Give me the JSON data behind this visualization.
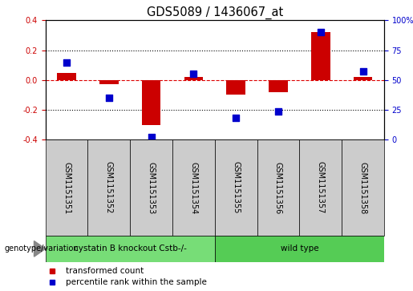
{
  "title": "GDS5089 / 1436067_at",
  "samples": [
    "GSM1151351",
    "GSM1151352",
    "GSM1151353",
    "GSM1151354",
    "GSM1151355",
    "GSM1151356",
    "GSM1151357",
    "GSM1151358"
  ],
  "red_bars": [
    0.05,
    -0.03,
    -0.3,
    0.02,
    -0.1,
    -0.08,
    0.32,
    0.02
  ],
  "blue_dots": [
    65,
    35,
    2,
    55,
    18,
    24,
    90,
    57
  ],
  "ylim_left": [
    -0.4,
    0.4
  ],
  "ylim_right": [
    0,
    100
  ],
  "yticks_left": [
    -0.4,
    -0.2,
    0.0,
    0.2,
    0.4
  ],
  "yticks_right": [
    0,
    25,
    50,
    75,
    100
  ],
  "ytick_labels_right": [
    "0",
    "25",
    "50",
    "75",
    "100%"
  ],
  "hlines": [
    0.2,
    -0.2
  ],
  "red_line_y": 0.0,
  "bar_color": "#cc0000",
  "dot_color": "#0000cc",
  "group1_label": "cystatin B knockout Cstb-/-",
  "group2_label": "wild type",
  "group1_indices": [
    0,
    1,
    2,
    3
  ],
  "group2_indices": [
    4,
    5,
    6,
    7
  ],
  "group1_color": "#77dd77",
  "group2_color": "#55cc55",
  "sample_box_color": "#cccccc",
  "genotype_label": "genotype/variation",
  "legend_red": "transformed count",
  "legend_blue": "percentile rank within the sample",
  "bar_width": 0.45,
  "dot_size": 35,
  "title_fontsize": 10.5,
  "tick_fontsize": 7,
  "label_fontsize": 8,
  "axes_bg": "#ffffff",
  "plot_bg": "#ffffff"
}
